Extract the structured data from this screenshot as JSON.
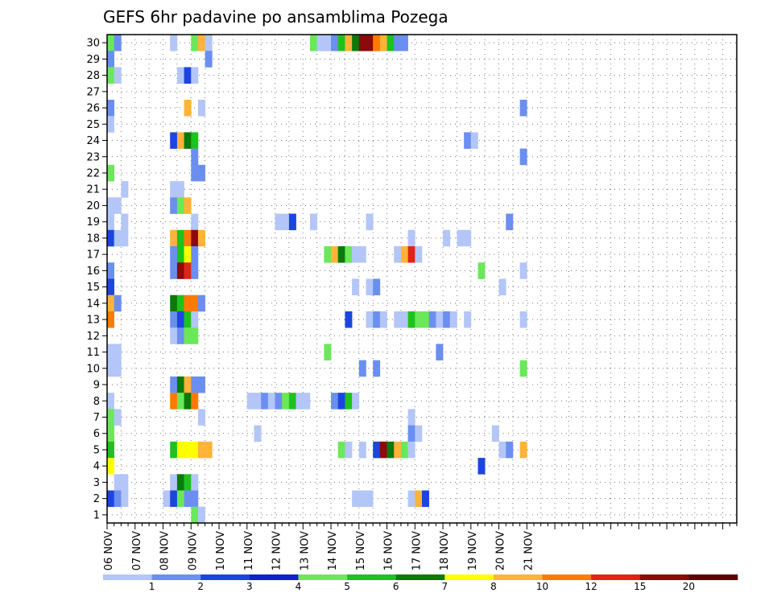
{
  "chart_data": {
    "type": "heatmap",
    "title": "GEFS 6hr padavine po ansamblima Pozega",
    "xlabel": "",
    "ylabel": "",
    "x_unit": "6h step",
    "x_range": [
      0,
      90
    ],
    "y_range": [
      1,
      30
    ],
    "x_ticks": [
      {
        "step": 0,
        "label": "06 NOV"
      },
      {
        "step": 4,
        "label": "07 NOV"
      },
      {
        "step": 8,
        "label": "08 NOV"
      },
      {
        "step": 12,
        "label": "09 NOV"
      },
      {
        "step": 16,
        "label": "10 NOV"
      },
      {
        "step": 20,
        "label": "11 NOV"
      },
      {
        "step": 24,
        "label": "12 NOV"
      },
      {
        "step": 28,
        "label": "13 NOV"
      },
      {
        "step": 32,
        "label": "14 NOV"
      },
      {
        "step": 36,
        "label": "15 NOV"
      },
      {
        "step": 40,
        "label": "16 NOV"
      },
      {
        "step": 44,
        "label": "17 NOV"
      },
      {
        "step": 48,
        "label": "18 NOV"
      },
      {
        "step": 52,
        "label": "19 NOV"
      },
      {
        "step": 56,
        "label": "20 NOV"
      },
      {
        "step": 60,
        "label": "21 NOV"
      }
    ],
    "y_ticks": [
      "1",
      "2",
      "3",
      "4",
      "5",
      "6",
      "7",
      "8",
      "9",
      "10",
      "11",
      "12",
      "13",
      "14",
      "15",
      "16",
      "17",
      "18",
      "19",
      "20",
      "21",
      "22",
      "23",
      "24",
      "25",
      "26",
      "27",
      "28",
      "29",
      "30"
    ],
    "grid": true,
    "legend": {
      "placement": "bottom",
      "labels": [
        "1",
        "2",
        "3",
        "4",
        "5",
        "6",
        "7",
        "8",
        "10",
        "12",
        "15",
        "20"
      ],
      "colors": [
        "#b3c6f7",
        "#6b8ff0",
        "#1c45e0",
        "#0f22cc",
        "#6ae85a",
        "#1ec21e",
        "#0a7a0a",
        "#ffff00",
        "#ffb338",
        "#ff7a00",
        "#e02418",
        "#8c0a0a",
        "#5c0000"
      ]
    },
    "cells": [
      {
        "m": 30,
        "s": 0,
        "c": 4
      },
      {
        "m": 30,
        "s": 1,
        "c": 1
      },
      {
        "m": 30,
        "s": 9,
        "c": 0
      },
      {
        "m": 30,
        "s": 12,
        "c": 4
      },
      {
        "m": 30,
        "s": 13,
        "c": 8
      },
      {
        "m": 30,
        "s": 14,
        "c": 0
      },
      {
        "m": 30,
        "s": 29,
        "c": 4
      },
      {
        "m": 30,
        "s": 30,
        "c": 0
      },
      {
        "m": 30,
        "s": 31,
        "c": 0
      },
      {
        "m": 30,
        "s": 32,
        "c": 1
      },
      {
        "m": 30,
        "s": 33,
        "c": 5
      },
      {
        "m": 30,
        "s": 34,
        "c": 8
      },
      {
        "m": 30,
        "s": 35,
        "c": 6
      },
      {
        "m": 30,
        "s": 36,
        "c": 11
      },
      {
        "m": 30,
        "s": 37,
        "c": 11
      },
      {
        "m": 30,
        "s": 38,
        "c": 9
      },
      {
        "m": 30,
        "s": 39,
        "c": 8
      },
      {
        "m": 30,
        "s": 40,
        "c": 5
      },
      {
        "m": 30,
        "s": 41,
        "c": 1
      },
      {
        "m": 30,
        "s": 42,
        "c": 1
      },
      {
        "m": 29,
        "s": 0,
        "c": 1
      },
      {
        "m": 29,
        "s": 14,
        "c": 1
      },
      {
        "m": 28,
        "s": 0,
        "c": 4
      },
      {
        "m": 28,
        "s": 1,
        "c": 0
      },
      {
        "m": 28,
        "s": 10,
        "c": 0
      },
      {
        "m": 28,
        "s": 11,
        "c": 2
      },
      {
        "m": 28,
        "s": 12,
        "c": 0
      },
      {
        "m": 26,
        "s": 0,
        "c": 1
      },
      {
        "m": 26,
        "s": 11,
        "c": 8
      },
      {
        "m": 26,
        "s": 13,
        "c": 0
      },
      {
        "m": 26,
        "s": 59,
        "c": 1
      },
      {
        "m": 25,
        "s": 0,
        "c": 0
      },
      {
        "m": 24,
        "s": 9,
        "c": 2
      },
      {
        "m": 24,
        "s": 10,
        "c": 8
      },
      {
        "m": 24,
        "s": 11,
        "c": 6
      },
      {
        "m": 24,
        "s": 12,
        "c": 5
      },
      {
        "m": 24,
        "s": 51,
        "c": 1
      },
      {
        "m": 24,
        "s": 52,
        "c": 0
      },
      {
        "m": 23,
        "s": 12,
        "c": 1
      },
      {
        "m": 23,
        "s": 59,
        "c": 1
      },
      {
        "m": 22,
        "s": 0,
        "c": 4
      },
      {
        "m": 22,
        "s": 12,
        "c": 1
      },
      {
        "m": 22,
        "s": 13,
        "c": 1
      },
      {
        "m": 21,
        "s": 2,
        "c": 0
      },
      {
        "m": 21,
        "s": 9,
        "c": 0
      },
      {
        "m": 21,
        "s": 10,
        "c": 0
      },
      {
        "m": 20,
        "s": 0,
        "c": 0
      },
      {
        "m": 20,
        "s": 1,
        "c": 0
      },
      {
        "m": 20,
        "s": 9,
        "c": 1
      },
      {
        "m": 20,
        "s": 10,
        "c": 4
      },
      {
        "m": 20,
        "s": 11,
        "c": 8
      },
      {
        "m": 19,
        "s": 0,
        "c": 0
      },
      {
        "m": 19,
        "s": 2,
        "c": 0
      },
      {
        "m": 19,
        "s": 12,
        "c": 0
      },
      {
        "m": 19,
        "s": 24,
        "c": 0
      },
      {
        "m": 19,
        "s": 25,
        "c": 0
      },
      {
        "m": 19,
        "s": 26,
        "c": 2
      },
      {
        "m": 19,
        "s": 29,
        "c": 0
      },
      {
        "m": 19,
        "s": 37,
        "c": 0
      },
      {
        "m": 19,
        "s": 57,
        "c": 1
      },
      {
        "m": 18,
        "s": 0,
        "c": 2
      },
      {
        "m": 18,
        "s": 1,
        "c": 0
      },
      {
        "m": 18,
        "s": 2,
        "c": 0
      },
      {
        "m": 18,
        "s": 9,
        "c": 8
      },
      {
        "m": 18,
        "s": 10,
        "c": 5
      },
      {
        "m": 18,
        "s": 11,
        "c": 9
      },
      {
        "m": 18,
        "s": 12,
        "c": 11
      },
      {
        "m": 18,
        "s": 13,
        "c": 8
      },
      {
        "m": 18,
        "s": 43,
        "c": 0
      },
      {
        "m": 18,
        "s": 48,
        "c": 0
      },
      {
        "m": 18,
        "s": 50,
        "c": 0
      },
      {
        "m": 18,
        "s": 51,
        "c": 0
      },
      {
        "m": 17,
        "s": 9,
        "c": 1
      },
      {
        "m": 17,
        "s": 10,
        "c": 5
      },
      {
        "m": 17,
        "s": 11,
        "c": 7
      },
      {
        "m": 17,
        "s": 12,
        "c": 1
      },
      {
        "m": 17,
        "s": 31,
        "c": 4
      },
      {
        "m": 17,
        "s": 32,
        "c": 8
      },
      {
        "m": 17,
        "s": 33,
        "c": 6
      },
      {
        "m": 17,
        "s": 34,
        "c": 4
      },
      {
        "m": 17,
        "s": 35,
        "c": 0
      },
      {
        "m": 17,
        "s": 36,
        "c": 0
      },
      {
        "m": 17,
        "s": 41,
        "c": 0
      },
      {
        "m": 17,
        "s": 42,
        "c": 8
      },
      {
        "m": 17,
        "s": 43,
        "c": 10
      },
      {
        "m": 17,
        "s": 44,
        "c": 0
      },
      {
        "m": 16,
        "s": 0,
        "c": 1
      },
      {
        "m": 16,
        "s": 9,
        "c": 1
      },
      {
        "m": 16,
        "s": 10,
        "c": 11
      },
      {
        "m": 16,
        "s": 11,
        "c": 10
      },
      {
        "m": 16,
        "s": 12,
        "c": 1
      },
      {
        "m": 16,
        "s": 53,
        "c": 4
      },
      {
        "m": 16,
        "s": 59,
        "c": 0
      },
      {
        "m": 15,
        "s": 0,
        "c": 2
      },
      {
        "m": 15,
        "s": 35,
        "c": 0
      },
      {
        "m": 15,
        "s": 37,
        "c": 0
      },
      {
        "m": 15,
        "s": 38,
        "c": 1
      },
      {
        "m": 15,
        "s": 56,
        "c": 0
      },
      {
        "m": 14,
        "s": 0,
        "c": 8
      },
      {
        "m": 14,
        "s": 1,
        "c": 1
      },
      {
        "m": 14,
        "s": 9,
        "c": 6
      },
      {
        "m": 14,
        "s": 10,
        "c": 5
      },
      {
        "m": 14,
        "s": 11,
        "c": 9
      },
      {
        "m": 14,
        "s": 12,
        "c": 9
      },
      {
        "m": 14,
        "s": 13,
        "c": 1
      },
      {
        "m": 13,
        "s": 0,
        "c": 9
      },
      {
        "m": 13,
        "s": 9,
        "c": 1
      },
      {
        "m": 13,
        "s": 10,
        "c": 2
      },
      {
        "m": 13,
        "s": 11,
        "c": 5
      },
      {
        "m": 13,
        "s": 12,
        "c": 0
      },
      {
        "m": 13,
        "s": 34,
        "c": 2
      },
      {
        "m": 13,
        "s": 37,
        "c": 0
      },
      {
        "m": 13,
        "s": 38,
        "c": 1
      },
      {
        "m": 13,
        "s": 39,
        "c": 0
      },
      {
        "m": 13,
        "s": 41,
        "c": 0
      },
      {
        "m": 13,
        "s": 42,
        "c": 0
      },
      {
        "m": 13,
        "s": 43,
        "c": 5
      },
      {
        "m": 13,
        "s": 44,
        "c": 4
      },
      {
        "m": 13,
        "s": 45,
        "c": 4
      },
      {
        "m": 13,
        "s": 46,
        "c": 1
      },
      {
        "m": 13,
        "s": 47,
        "c": 0
      },
      {
        "m": 13,
        "s": 48,
        "c": 1
      },
      {
        "m": 13,
        "s": 49,
        "c": 0
      },
      {
        "m": 13,
        "s": 51,
        "c": 0
      },
      {
        "m": 13,
        "s": 59,
        "c": 0
      },
      {
        "m": 12,
        "s": 9,
        "c": 0
      },
      {
        "m": 12,
        "s": 10,
        "c": 1
      },
      {
        "m": 12,
        "s": 11,
        "c": 4
      },
      {
        "m": 12,
        "s": 12,
        "c": 4
      },
      {
        "m": 11,
        "s": 0,
        "c": 0
      },
      {
        "m": 11,
        "s": 1,
        "c": 0
      },
      {
        "m": 11,
        "s": 31,
        "c": 4
      },
      {
        "m": 11,
        "s": 47,
        "c": 1
      },
      {
        "m": 10,
        "s": 0,
        "c": 0
      },
      {
        "m": 10,
        "s": 1,
        "c": 0
      },
      {
        "m": 10,
        "s": 36,
        "c": 1
      },
      {
        "m": 10,
        "s": 38,
        "c": 1
      },
      {
        "m": 10,
        "s": 59,
        "c": 4
      },
      {
        "m": 9,
        "s": 9,
        "c": 1
      },
      {
        "m": 9,
        "s": 10,
        "c": 6
      },
      {
        "m": 9,
        "s": 11,
        "c": 8
      },
      {
        "m": 9,
        "s": 12,
        "c": 1
      },
      {
        "m": 9,
        "s": 13,
        "c": 1
      },
      {
        "m": 8,
        "s": 0,
        "c": 0
      },
      {
        "m": 8,
        "s": 9,
        "c": 9
      },
      {
        "m": 8,
        "s": 10,
        "c": 4
      },
      {
        "m": 8,
        "s": 11,
        "c": 6
      },
      {
        "m": 8,
        "s": 12,
        "c": 9
      },
      {
        "m": 8,
        "s": 20,
        "c": 0
      },
      {
        "m": 8,
        "s": 21,
        "c": 0
      },
      {
        "m": 8,
        "s": 22,
        "c": 1
      },
      {
        "m": 8,
        "s": 23,
        "c": 0
      },
      {
        "m": 8,
        "s": 24,
        "c": 1
      },
      {
        "m": 8,
        "s": 25,
        "c": 4
      },
      {
        "m": 8,
        "s": 26,
        "c": 5
      },
      {
        "m": 8,
        "s": 27,
        "c": 0
      },
      {
        "m": 8,
        "s": 28,
        "c": 0
      },
      {
        "m": 8,
        "s": 32,
        "c": 1
      },
      {
        "m": 8,
        "s": 33,
        "c": 2
      },
      {
        "m": 8,
        "s": 34,
        "c": 5
      },
      {
        "m": 8,
        "s": 35,
        "c": 0
      },
      {
        "m": 7,
        "s": 0,
        "c": 4
      },
      {
        "m": 7,
        "s": 1,
        "c": 0
      },
      {
        "m": 7,
        "s": 13,
        "c": 0
      },
      {
        "m": 7,
        "s": 43,
        "c": 0
      },
      {
        "m": 6,
        "s": 0,
        "c": 4
      },
      {
        "m": 6,
        "s": 21,
        "c": 0
      },
      {
        "m": 6,
        "s": 43,
        "c": 1
      },
      {
        "m": 6,
        "s": 44,
        "c": 0
      },
      {
        "m": 6,
        "s": 55,
        "c": 0
      },
      {
        "m": 5,
        "s": 0,
        "c": 5
      },
      {
        "m": 5,
        "s": 9,
        "c": 5
      },
      {
        "m": 5,
        "s": 10,
        "c": 7
      },
      {
        "m": 5,
        "s": 11,
        "c": 7
      },
      {
        "m": 5,
        "s": 12,
        "c": 7
      },
      {
        "m": 5,
        "s": 13,
        "c": 8
      },
      {
        "m": 5,
        "s": 14,
        "c": 8
      },
      {
        "m": 5,
        "s": 33,
        "c": 4
      },
      {
        "m": 5,
        "s": 34,
        "c": 0
      },
      {
        "m": 5,
        "s": 36,
        "c": 0
      },
      {
        "m": 5,
        "s": 38,
        "c": 2
      },
      {
        "m": 5,
        "s": 39,
        "c": 11
      },
      {
        "m": 5,
        "s": 40,
        "c": 6
      },
      {
        "m": 5,
        "s": 41,
        "c": 8
      },
      {
        "m": 5,
        "s": 42,
        "c": 4
      },
      {
        "m": 5,
        "s": 43,
        "c": 0
      },
      {
        "m": 5,
        "s": 56,
        "c": 0
      },
      {
        "m": 5,
        "s": 57,
        "c": 1
      },
      {
        "m": 5,
        "s": 59,
        "c": 8
      },
      {
        "m": 4,
        "s": 0,
        "c": 7
      },
      {
        "m": 4,
        "s": 53,
        "c": 2
      },
      {
        "m": 3,
        "s": 1,
        "c": 0
      },
      {
        "m": 3,
        "s": 2,
        "c": 0
      },
      {
        "m": 3,
        "s": 9,
        "c": 0
      },
      {
        "m": 3,
        "s": 10,
        "c": 6
      },
      {
        "m": 3,
        "s": 11,
        "c": 5
      },
      {
        "m": 3,
        "s": 12,
        "c": 0
      },
      {
        "m": 2,
        "s": 0,
        "c": 2
      },
      {
        "m": 2,
        "s": 1,
        "c": 1
      },
      {
        "m": 2,
        "s": 2,
        "c": 0
      },
      {
        "m": 2,
        "s": 8,
        "c": 0
      },
      {
        "m": 2,
        "s": 9,
        "c": 2
      },
      {
        "m": 2,
        "s": 10,
        "c": 4
      },
      {
        "m": 2,
        "s": 11,
        "c": 1
      },
      {
        "m": 2,
        "s": 12,
        "c": 1
      },
      {
        "m": 2,
        "s": 35,
        "c": 0
      },
      {
        "m": 2,
        "s": 36,
        "c": 0
      },
      {
        "m": 2,
        "s": 37,
        "c": 0
      },
      {
        "m": 2,
        "s": 43,
        "c": 0
      },
      {
        "m": 2,
        "s": 44,
        "c": 8
      },
      {
        "m": 2,
        "s": 45,
        "c": 2
      },
      {
        "m": 1,
        "s": 12,
        "c": 4
      },
      {
        "m": 1,
        "s": 13,
        "c": 0
      }
    ]
  }
}
